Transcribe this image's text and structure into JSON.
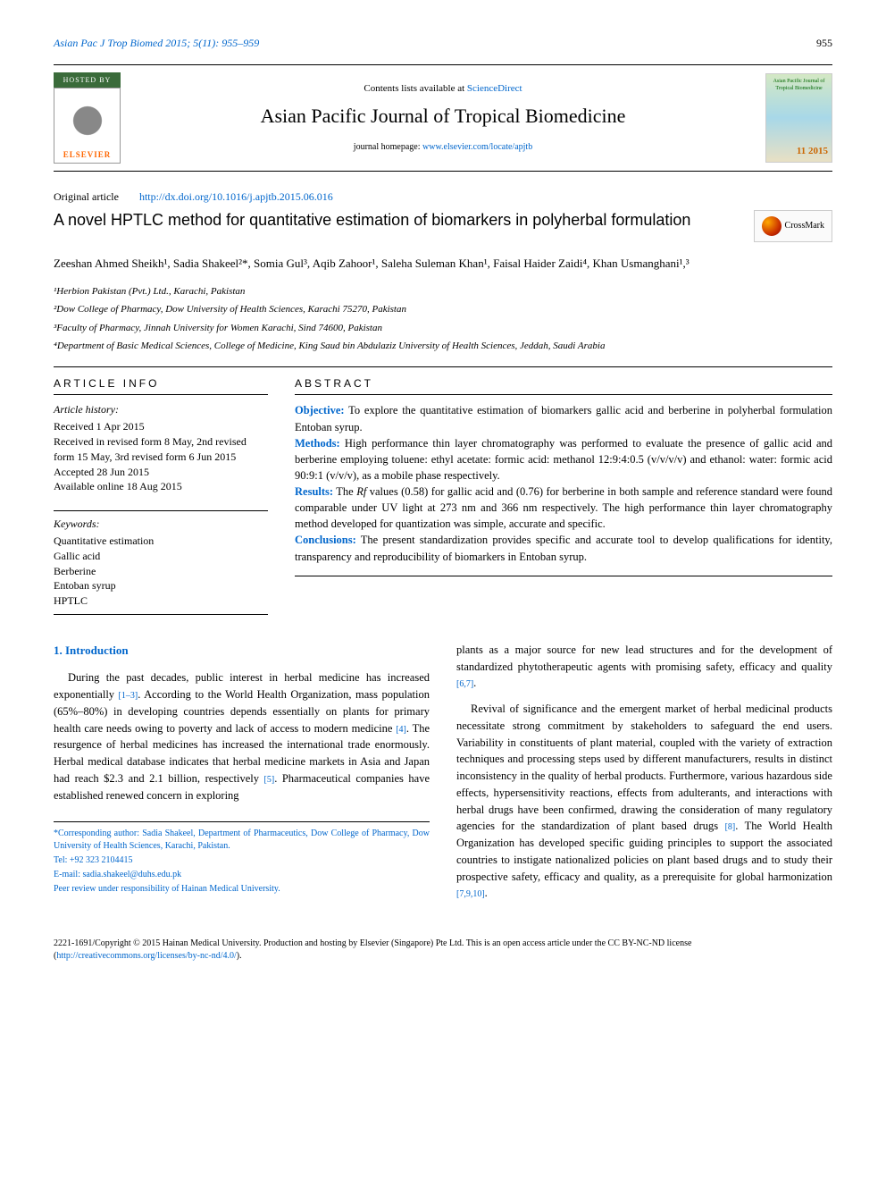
{
  "header": {
    "journal_ref": "Asian Pac J Trop Biomed 2015; 5(11): 955–959",
    "page_number": "955"
  },
  "masthead": {
    "hosted_by": "HOSTED BY",
    "elsevier": "ELSEVIER",
    "contents_text": "Contents lists available at ",
    "contents_link": "ScienceDirect",
    "journal_title": "Asian Pacific Journal of Tropical Biomedicine",
    "homepage_text": "journal homepage: ",
    "homepage_link": "www.elsevier.com/locate/apjtb",
    "cover_title": "Asian Pacific Journal of Tropical Biomedicine",
    "issue_label": "11\n2015"
  },
  "article": {
    "type": "Original article",
    "doi": "http://dx.doi.org/10.1016/j.apjtb.2015.06.016",
    "title": "A novel HPTLC method for quantitative estimation of biomarkers in polyherbal formulation",
    "crossmark_label": "CrossMark"
  },
  "authors": {
    "list": "Zeeshan Ahmed Sheikh¹, Sadia Shakeel²*, Somia Gul³, Aqib Zahoor¹, Saleha Suleman Khan¹, Faisal Haider Zaidi⁴, Khan Usmanghani¹,³"
  },
  "affiliations": [
    "¹Herbion Pakistan (Pvt.) Ltd., Karachi, Pakistan",
    "²Dow College of Pharmacy, Dow University of Health Sciences, Karachi 75270, Pakistan",
    "³Faculty of Pharmacy, Jinnah University for Women Karachi, Sind 74600, Pakistan",
    "⁴Department of Basic Medical Sciences, College of Medicine, King Saud bin Abdulaziz University of Health Sciences, Jeddah, Saudi Arabia"
  ],
  "article_info": {
    "heading": "ARTICLE INFO",
    "history_label": "Article history:",
    "history": [
      "Received 1 Apr 2015",
      "Received in revised form 8 May, 2nd revised form 15 May, 3rd revised form 6 Jun 2015",
      "Accepted 28 Jun 2015",
      "Available online 18 Aug 2015"
    ],
    "keywords_label": "Keywords:",
    "keywords": [
      "Quantitative estimation",
      "Gallic acid",
      "Berberine",
      "Entoban syrup",
      "HPTLC"
    ]
  },
  "abstract": {
    "heading": "ABSTRACT",
    "objective_label": "Objective:",
    "objective": " To explore the quantitative estimation of biomarkers gallic acid and berberine in polyherbal formulation Entoban syrup.",
    "methods_label": "Methods:",
    "methods": " High performance thin layer chromatography was performed to evaluate the presence of gallic acid and berberine employing toluene: ethyl acetate: formic acid: methanol 12:9:4:0.5 (v/v/v/v) and ethanol: water: formic acid 90:9:1 (v/v/v), as a mobile phase respectively.",
    "results_label": "Results:",
    "results_pre": " The ",
    "results_rf": "Rf",
    "results_post": " values (0.58) for gallic acid and (0.76) for berberine in both sample and reference standard were found comparable under UV light at 273 nm and 366 nm respectively. The high performance thin layer chromatography method developed for quantization was simple, accurate and specific.",
    "conclusions_label": "Conclusions:",
    "conclusions": " The present standardization provides specific and accurate tool to develop qualifications for identity, transparency and reproducibility of biomarkers in Entoban syrup."
  },
  "body": {
    "intro_heading": "1. Introduction",
    "col1_p1_a": "During the past decades, public interest in herbal medicine has increased exponentially ",
    "col1_p1_cite1": "[1–3]",
    "col1_p1_b": ". According to the World Health Organization, mass population (65%–80%) in developing countries depends essentially on plants for primary health care needs owing to poverty and lack of access to modern medicine ",
    "col1_p1_cite2": "[4]",
    "col1_p1_c": ". The resurgence of herbal medicines has increased the international trade enormously. Herbal medical database indicates that herbal medicine markets in Asia and Japan had reach $2.3 and 2.1 billion, respectively ",
    "col1_p1_cite3": "[5]",
    "col1_p1_d": ". Pharmaceutical companies have established renewed concern in exploring",
    "col2_p1_a": "plants as a major source for new lead structures and for the development of standardized phytotherapeutic agents with promising safety, efficacy and quality ",
    "col2_p1_cite1": "[6,7]",
    "col2_p1_b": ".",
    "col2_p2_a": "Revival of significance and the emergent market of herbal medicinal products necessitate strong commitment by stakeholders to safeguard the end users. Variability in constituents of plant material, coupled with the variety of extraction techniques and processing steps used by different manufacturers, results in distinct inconsistency in the quality of herbal products. Furthermore, various hazardous side effects, hypersensitivity reactions, effects from adulterants, and interactions with herbal drugs have been confirmed, drawing the consideration of many regulatory agencies for the standardization of plant based drugs ",
    "col2_p2_cite1": "[8]",
    "col2_p2_b": ". The World Health Organization has developed specific guiding principles to support the associated countries to instigate nationalized policies on plant based drugs and to study their prospective safety, efficacy and quality, as a prerequisite for global harmonization ",
    "col2_p2_cite2": "[7,9,10]",
    "col2_p2_c": "."
  },
  "footnotes": {
    "corr": "*Corresponding author: Sadia Shakeel, Department of Pharmaceutics, Dow College of Pharmacy, Dow University of Health Sciences, Karachi, Pakistan.",
    "tel": "Tel: +92 323 2104415",
    "email_label": "E-mail: ",
    "email": "sadia.shakeel@duhs.edu.pk",
    "peer": "Peer review under responsibility of Hainan Medical University."
  },
  "copyright": {
    "text": "2221-1691/Copyright © 2015 Hainan Medical University. Production and hosting by Elsevier (Singapore) Pte Ltd. This is an open access article under the CC BY-NC-ND license (",
    "link": "http://creativecommons.org/licenses/by-nc-nd/4.0/",
    "close": ")."
  },
  "colors": {
    "link_blue": "#0066cc",
    "text_black": "#000000",
    "elsevier_orange": "#ff6600",
    "hosted_green": "#3a6b3a"
  },
  "typography": {
    "body_fontsize": 12.5,
    "title_fontsize": 18,
    "journal_title_fontsize": 22,
    "heading_letterspacing": 3
  }
}
